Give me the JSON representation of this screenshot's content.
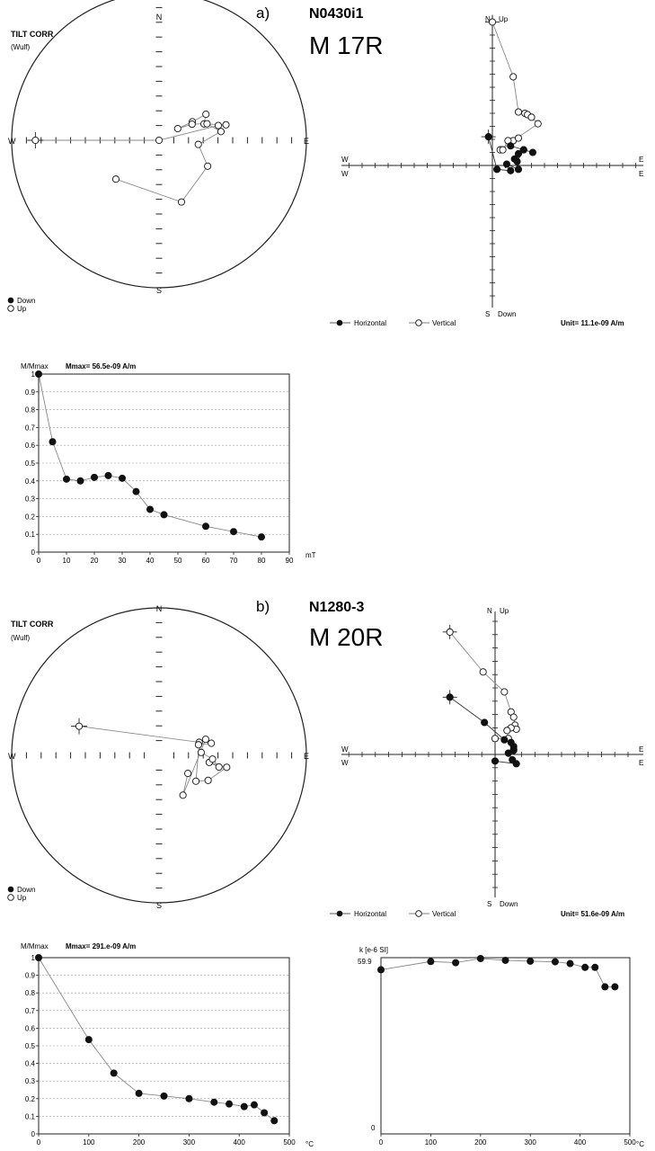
{
  "panels": [
    {
      "letter": "a)",
      "id": "N0430i1",
      "name": "M 17R",
      "stereo": {
        "title": "TILT CORR",
        "projection": "(Wulf)",
        "n": "N",
        "s": "S",
        "e": "E",
        "w": "W",
        "legend_down": "Down",
        "legend_up": "Up"
      },
      "zij": {
        "n_label": "N",
        "up_label": "Up",
        "s_label": "S",
        "down_label": "Down",
        "w1": "W",
        "w2": "W",
        "e1": "E",
        "e2": "E",
        "legend_h": "Horizontal",
        "legend_v": "Vertical",
        "unit": "Unit=  11.1e-09 A/m"
      },
      "decay": {
        "ylabel": "M/Mmax",
        "mmax": "Mmax= 56.5e-09  A/m",
        "xunit": "mT"
      }
    },
    {
      "letter": "b)",
      "id": "N1280-3",
      "name": "M 20R",
      "stereo": {
        "title": "TILT CORR",
        "projection": "(Wulf)",
        "n": "N",
        "s": "S",
        "e": "E",
        "w": "W",
        "legend_down": "Down",
        "legend_up": "Up"
      },
      "zij": {
        "n_label": "N",
        "up_label": "Up",
        "s_label": "S",
        "down_label": "Down",
        "w1": "W",
        "w2": "W",
        "e1": "E",
        "e2": "E",
        "legend_h": "Horizontal",
        "legend_v": "Vertical",
        "unit": "Unit=  51.6e-09 A/m"
      },
      "decay": {
        "ylabel": "M/Mmax",
        "mmax": "Mmax= 291.e-09  A/m",
        "xunit": "°C"
      },
      "suscept": {
        "ylabel": "k [e-6 SI]",
        "ymax_label": "59.9",
        "zero_label": "0",
        "xunit": "°C"
      }
    }
  ],
  "chart_data": [
    {
      "type": "line",
      "panel": "a",
      "ylabel": "M/Mmax",
      "xlabel": "mT",
      "xlim": [
        0,
        90
      ],
      "ylim": [
        0,
        1
      ],
      "x_ticks": [
        "0",
        "10",
        "20",
        "30",
        "40",
        "50",
        "60",
        "70",
        "80",
        "90"
      ],
      "y_ticks": [
        "0",
        "0.1",
        "0.2",
        "0.3",
        "0.4",
        "0.5",
        "0.6",
        "0.7",
        "0.8",
        "0.9",
        "1"
      ],
      "x": [
        0,
        5,
        10,
        15,
        20,
        25,
        30,
        35,
        40,
        45,
        60,
        70,
        80
      ],
      "y": [
        1.0,
        0.62,
        0.41,
        0.4,
        0.42,
        0.43,
        0.415,
        0.34,
        0.24,
        0.21,
        0.145,
        0.115,
        0.085
      ]
    },
    {
      "type": "line",
      "panel": "b",
      "ylabel": "M/Mmax",
      "xlabel": "°C",
      "xlim": [
        0,
        500
      ],
      "ylim": [
        0,
        1
      ],
      "x_ticks": [
        "0",
        "100",
        "200",
        "300",
        "400",
        "500"
      ],
      "y_ticks": [
        "0",
        "0.1",
        "0.2",
        "0.3",
        "0.4",
        "0.5",
        "0.6",
        "0.7",
        "0.8",
        "0.9",
        "1"
      ],
      "x": [
        0,
        100,
        150,
        200,
        250,
        300,
        350,
        380,
        410,
        430,
        450,
        470
      ],
      "y": [
        1.0,
        0.535,
        0.345,
        0.23,
        0.215,
        0.2,
        0.18,
        0.17,
        0.155,
        0.165,
        0.12,
        0.075
      ]
    },
    {
      "type": "line",
      "panel": "b",
      "ylabel": "k [e-6 SI]",
      "xlabel": "°C",
      "xlim": [
        0,
        500
      ],
      "ylim": [
        0,
        59.9
      ],
      "x_ticks": [
        "0",
        "100",
        "200",
        "300",
        "400",
        "500"
      ],
      "x": [
        0,
        100,
        150,
        200,
        250,
        300,
        350,
        380,
        410,
        430,
        450,
        470
      ],
      "y": [
        55.8,
        58.6,
        58.2,
        59.6,
        59.0,
        58.7,
        58.5,
        57.9,
        56.6,
        56.6,
        50.0,
        50.0
      ]
    }
  ],
  "stereo_data": [
    {
      "panel": "a",
      "dec": [
        270,
        82,
        76,
        77,
        70,
        61,
        61,
        58,
        64,
        71,
        82,
        96,
        118,
        160,
        228
      ],
      "inc": [
        -10,
        -90,
        -45,
        -40,
        -54,
        -50,
        -61,
        -73,
        -62,
        -52,
        -44,
        -60,
        -49,
        -42,
        -47
      ],
      "open": [
        true,
        true,
        true,
        true,
        true,
        true,
        true,
        true,
        true,
        true,
        true,
        true,
        true,
        true,
        true
      ]
    },
    {
      "panel": "b",
      "dec": [
        290,
        72,
        125,
        117,
        100,
        98,
        101,
        94,
        86,
        75,
        77,
        71,
        149,
        122
      ],
      "inc": [
        -30,
        -58,
        -56,
        -49,
        -40,
        -52,
        -45,
        -50,
        -58,
        -59,
        -50,
        -53,
        -55,
        -64
      ],
      "open": [
        true,
        true,
        true,
        true,
        true,
        true,
        true,
        true,
        true,
        true,
        true,
        true,
        true,
        true
      ]
    }
  ],
  "zij_data": [
    {
      "panel": "a",
      "horizontal": [
        [
          -0.3,
          2.2
        ],
        [
          0.35,
          -0.3
        ],
        [
          1.4,
          -0.4
        ],
        [
          1.1,
          0.1
        ],
        [
          2.0,
          -0.3
        ],
        [
          2.0,
          0.9
        ],
        [
          1.7,
          0.5
        ],
        [
          1.9,
          0.3
        ],
        [
          2.4,
          1.2
        ],
        [
          3.1,
          1.0
        ],
        [
          2.4,
          1.2
        ],
        [
          1.4,
          1.5
        ]
      ],
      "vertical": [
        [
          0.0,
          11.0
        ],
        [
          1.6,
          6.8
        ],
        [
          2.0,
          4.1
        ],
        [
          2.5,
          4.0
        ],
        [
          2.7,
          3.9
        ],
        [
          3.0,
          3.7
        ],
        [
          3.5,
          3.2
        ],
        [
          1.6,
          1.9
        ],
        [
          2.0,
          2.1
        ],
        [
          0.6,
          1.2
        ],
        [
          0.8,
          1.2
        ],
        [
          1.2,
          1.9
        ]
      ]
    },
    {
      "panel": "b",
      "horizontal": [
        [
          -3.4,
          4.3
        ],
        [
          -0.8,
          2.4
        ],
        [
          0.7,
          1.1
        ],
        [
          1.2,
          0.9
        ],
        [
          1.4,
          0.6
        ],
        [
          1.4,
          0.3
        ],
        [
          1.4,
          0.4
        ],
        [
          1.0,
          0.1
        ],
        [
          1.3,
          -0.4
        ],
        [
          1.6,
          -0.7
        ],
        [
          0.0,
          -0.5
        ]
      ],
      "vertical": [
        [
          -3.4,
          9.2
        ],
        [
          -0.9,
          6.2
        ],
        [
          0.7,
          4.7
        ],
        [
          1.2,
          3.2
        ],
        [
          1.4,
          2.8
        ],
        [
          1.5,
          2.2
        ],
        [
          1.6,
          1.9
        ],
        [
          1.2,
          2.0
        ],
        [
          0.9,
          1.8
        ],
        [
          1.0,
          1.2
        ],
        [
          0.0,
          1.2
        ]
      ]
    }
  ]
}
